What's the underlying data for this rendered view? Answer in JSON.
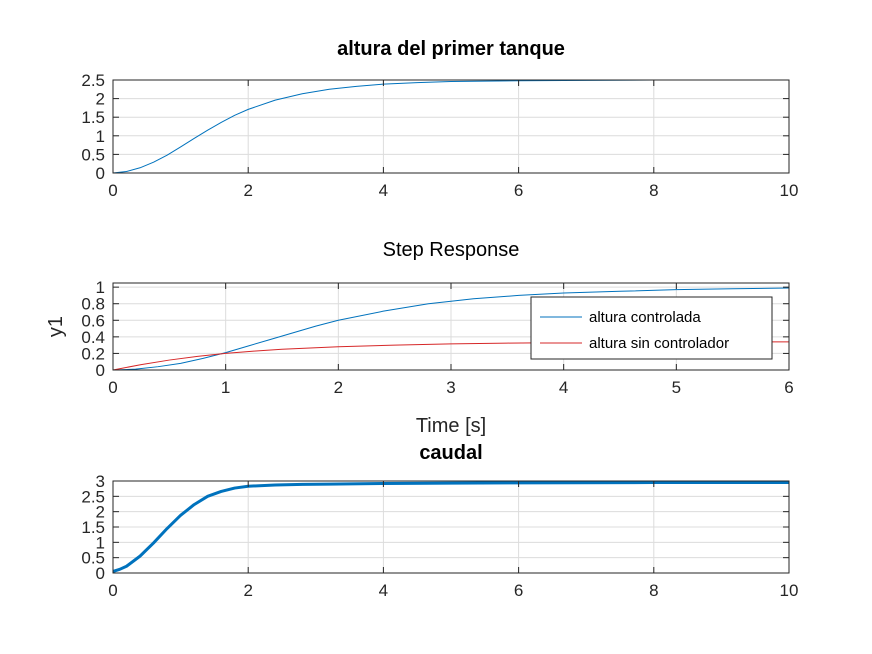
{
  "chart_data": [
    {
      "type": "line",
      "title": "altura del primer tanque",
      "title_bold": true,
      "xlabel": "",
      "ylabel": "",
      "xlim": [
        0,
        10
      ],
      "ylim": [
        0,
        2.5
      ],
      "xticks": [
        "0",
        "2",
        "4",
        "6",
        "8",
        "10"
      ],
      "yticks": [
        "0",
        "0.5",
        "1",
        "1.5",
        "2",
        "2.5"
      ],
      "grid": true,
      "series": [
        {
          "color": "#0072bd",
          "x": [
            0,
            0.2,
            0.4,
            0.6,
            0.8,
            1.0,
            1.2,
            1.4,
            1.6,
            1.8,
            2.0,
            2.4,
            2.8,
            3.2,
            3.6,
            4.0,
            4.5,
            5.0,
            6.0,
            7.0,
            8.0,
            9.0,
            10.0
          ],
          "y": [
            0,
            0.04,
            0.14,
            0.29,
            0.48,
            0.7,
            0.93,
            1.15,
            1.36,
            1.55,
            1.71,
            1.96,
            2.13,
            2.25,
            2.33,
            2.39,
            2.43,
            2.46,
            2.48,
            2.49,
            2.5,
            2.5,
            2.5
          ]
        }
      ]
    },
    {
      "type": "line",
      "title": "Step Response",
      "title_bold": false,
      "xlabel": "Time [s]",
      "ylabel": "y1",
      "xlim": [
        0,
        6
      ],
      "ylim": [
        0,
        1.05
      ],
      "xticks": [
        "0",
        "1",
        "2",
        "3",
        "4",
        "5",
        "6"
      ],
      "yticks": [
        "0",
        "0.2",
        "0.4",
        "0.6",
        "0.8",
        "1"
      ],
      "grid": true,
      "legend_position": "right",
      "series": [
        {
          "name": "altura controlada",
          "color": "#0072bd",
          "x": [
            0,
            0.2,
            0.4,
            0.6,
            0.8,
            1.0,
            1.2,
            1.4,
            1.6,
            1.8,
            2.0,
            2.4,
            2.8,
            3.2,
            3.6,
            4.0,
            4.5,
            5.0,
            5.5,
            6.0
          ],
          "y": [
            0,
            0.01,
            0.04,
            0.08,
            0.14,
            0.21,
            0.29,
            0.37,
            0.45,
            0.53,
            0.6,
            0.71,
            0.8,
            0.86,
            0.9,
            0.93,
            0.95,
            0.97,
            0.98,
            0.99
          ]
        },
        {
          "name": "altura sin controlador",
          "color": "#d62728",
          "x": [
            0,
            0.25,
            0.5,
            0.75,
            1.0,
            1.25,
            1.5,
            2.0,
            2.5,
            3.0,
            3.5,
            4.0,
            4.5,
            5.0,
            5.5,
            6.0
          ],
          "y": [
            0,
            0.065,
            0.12,
            0.165,
            0.2,
            0.228,
            0.25,
            0.28,
            0.3,
            0.315,
            0.325,
            0.33,
            0.335,
            0.338,
            0.34,
            0.34
          ]
        }
      ]
    },
    {
      "type": "line",
      "title": "caudal",
      "title_bold": true,
      "xlabel": "",
      "ylabel": "",
      "xlim": [
        0,
        10
      ],
      "ylim": [
        0,
        3
      ],
      "xticks": [
        "0",
        "2",
        "4",
        "6",
        "8",
        "10"
      ],
      "yticks": [
        "0",
        "0.5",
        "1",
        "1.5",
        "2",
        "2.5",
        "3"
      ],
      "grid": true,
      "series": [
        {
          "color": "#0072bd",
          "line_width": 3,
          "x": [
            0,
            0.1,
            0.2,
            0.4,
            0.6,
            0.8,
            1.0,
            1.2,
            1.4,
            1.6,
            1.8,
            2.0,
            2.4,
            2.8,
            3.2,
            4.0,
            5.0,
            6.0,
            8.0,
            10.0
          ],
          "y": [
            0.05,
            0.12,
            0.22,
            0.55,
            0.98,
            1.45,
            1.88,
            2.23,
            2.5,
            2.66,
            2.77,
            2.83,
            2.87,
            2.89,
            2.9,
            2.92,
            2.93,
            2.94,
            2.95,
            2.95
          ]
        }
      ]
    }
  ]
}
